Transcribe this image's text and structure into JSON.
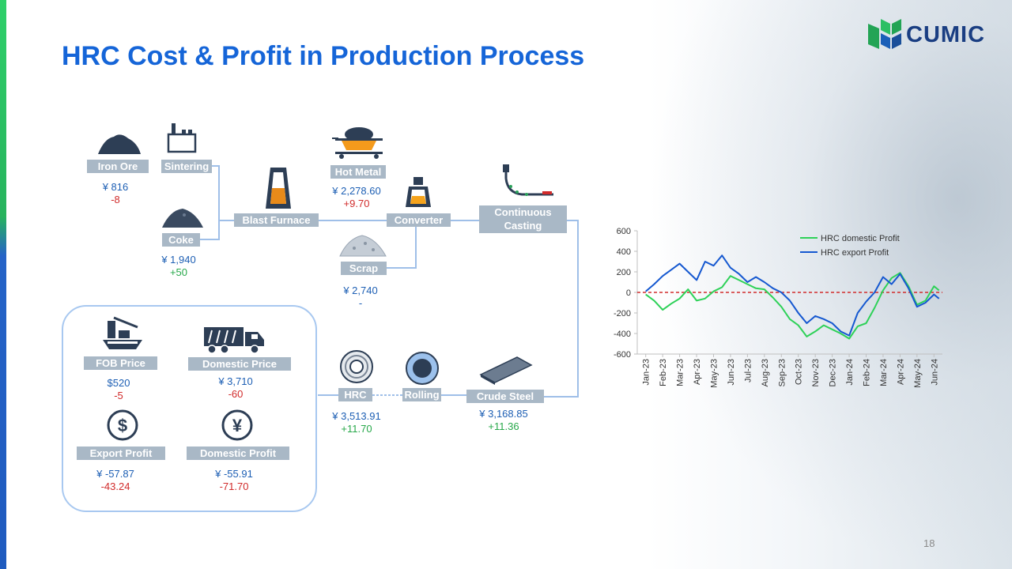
{
  "title": "HRC Cost & Profit in Production Process",
  "logo": {
    "text": "CUMIC"
  },
  "page_number": "18",
  "nodes": {
    "iron_ore": {
      "label": "Iron Ore",
      "value": "¥ 816",
      "change": "-8"
    },
    "sintering": {
      "label": "Sintering"
    },
    "coke": {
      "label": "Coke",
      "value": "¥ 1,940",
      "change": "+50"
    },
    "blast_furnace": {
      "label": "Blast Furnace"
    },
    "hot_metal": {
      "label": "Hot Metal",
      "value": "¥ 2,278.60",
      "change": "+9.70"
    },
    "converter": {
      "label": "Converter"
    },
    "scrap": {
      "label": "Scrap",
      "value": "¥ 2,740",
      "change": "-"
    },
    "continuous_casting": {
      "label": "Continuous Casting"
    },
    "crude_steel": {
      "label": "Crude Steel",
      "value": "¥ 3,168.85",
      "change": "+11.36"
    },
    "rolling": {
      "label": "Rolling"
    },
    "hrc": {
      "label": "HRC",
      "value": "¥ 3,513.91",
      "change": "+11.70"
    }
  },
  "summary": {
    "fob_price": {
      "label": "FOB Price",
      "value": "$520",
      "change": "-5"
    },
    "domestic_price": {
      "label": "Domestic Price",
      "value": "¥ 3,710",
      "change": "-60"
    },
    "export_profit": {
      "label": "Export Profit",
      "value": "¥ -57.87",
      "change": "-43.24"
    },
    "domestic_profit": {
      "label": "Domestic Profit",
      "value": "¥ -55.91",
      "change": "-71.70"
    }
  },
  "icons": [
    "iron-ore-pile-icon",
    "sintering-plant-icon",
    "coke-pile-icon",
    "blast-furnace-icon",
    "hot-metal-ladle-icon",
    "converter-icon",
    "scrap-pile-icon",
    "continuous-casting-icon",
    "steel-slab-icon",
    "roll-icon",
    "hrc-coil-icon",
    "ship-crane-icon",
    "truck-icon",
    "dollar-icon",
    "yen-icon"
  ],
  "colors": {
    "title": "#1565d8",
    "label_bg": "#a9b8c6",
    "up": "#27a84a",
    "down": "#d12b2b",
    "value": "#1d5fb4",
    "connector": "#9fbfe8"
  },
  "chart_data": {
    "type": "line",
    "x_tick_labels": [
      "Jan-23",
      "Feb-23",
      "Mar-23",
      "Apr-23",
      "May-23",
      "Jun-23",
      "Jul-23",
      "Aug-23",
      "Sep-23",
      "Oct-23",
      "Nov-23",
      "Dec-23",
      "Jan-24",
      "Feb-24",
      "Mar-24",
      "Apr-24",
      "May-24",
      "Jun-24"
    ],
    "yticks": [
      600,
      400,
      200,
      0,
      -200,
      -400,
      -600
    ],
    "ylim": [
      -600,
      600
    ],
    "reference_line": 0,
    "legend_placement": "top-right",
    "series": [
      {
        "name": "HRC domestic Profit",
        "color": "#2ed158",
        "x": [
          0,
          0.5,
          1,
          1.5,
          2,
          2.5,
          3,
          3.5,
          4,
          4.5,
          5,
          5.5,
          6,
          6.5,
          7,
          7.5,
          8,
          8.5,
          9,
          9.5,
          10,
          10.5,
          11,
          11.5,
          12,
          12.5,
          13,
          13.5,
          14,
          14.5,
          15,
          15.5,
          16,
          16.5,
          17,
          17.3
        ],
        "values": [
          -20,
          -80,
          -170,
          -110,
          -60,
          30,
          -80,
          -60,
          10,
          50,
          160,
          120,
          80,
          40,
          30,
          -50,
          -140,
          -260,
          -320,
          -430,
          -380,
          -320,
          -360,
          -400,
          -450,
          -330,
          -300,
          -150,
          20,
          140,
          190,
          60,
          -120,
          -80,
          60,
          20
        ]
      },
      {
        "name": "HRC export Profit",
        "color": "#1558d0",
        "x": [
          0,
          0.5,
          1,
          1.5,
          2,
          2.5,
          3,
          3.5,
          4,
          4.5,
          5,
          5.5,
          6,
          6.5,
          7,
          7.5,
          8,
          8.5,
          9,
          9.5,
          10,
          10.5,
          11,
          11.5,
          12,
          12.5,
          13,
          13.5,
          14,
          14.5,
          15,
          15.5,
          16,
          16.5,
          17,
          17.3
        ],
        "values": [
          10,
          80,
          160,
          220,
          280,
          200,
          120,
          300,
          260,
          360,
          240,
          180,
          100,
          150,
          100,
          40,
          0,
          -80,
          -200,
          -300,
          -230,
          -260,
          -300,
          -380,
          -420,
          -200,
          -90,
          0,
          150,
          80,
          180,
          40,
          -140,
          -100,
          -20,
          -60
        ]
      }
    ]
  }
}
